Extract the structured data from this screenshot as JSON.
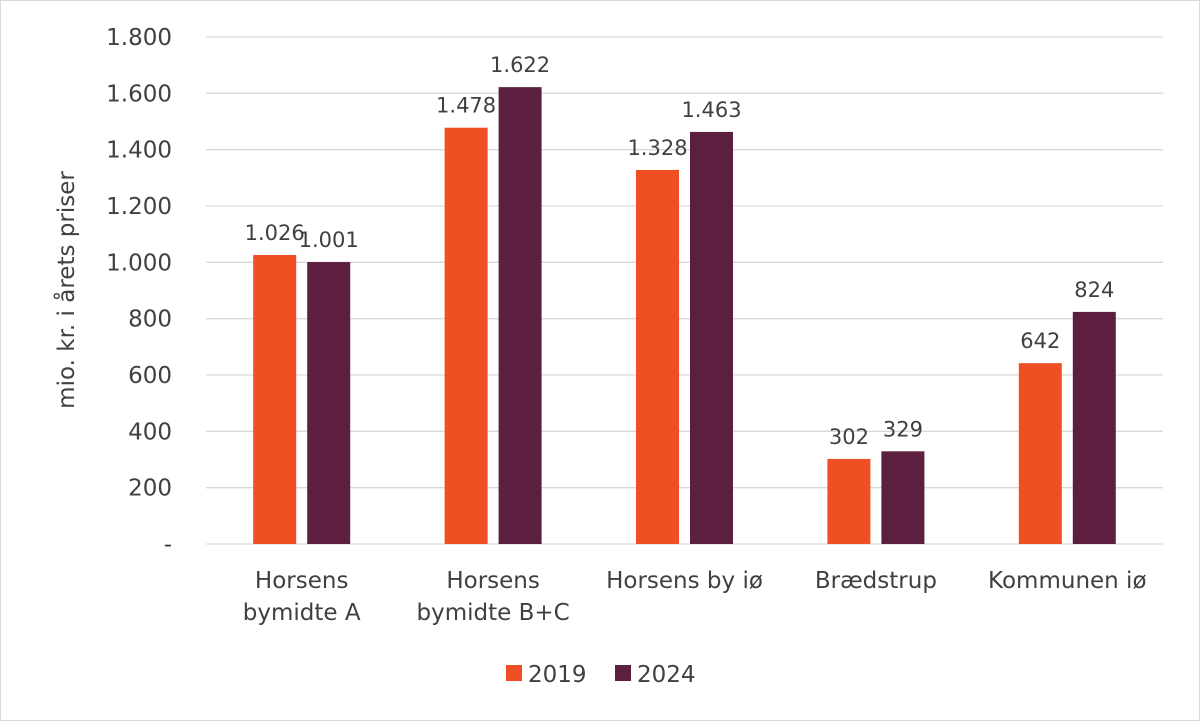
{
  "chart_data": {
    "type": "bar",
    "title": "",
    "xlabel": "",
    "ylabel": "mio. kr. i årets priser",
    "ylim": [
      0,
      1800
    ],
    "y_ticks": [
      {
        "value": 0,
        "label": "-"
      },
      {
        "value": 200,
        "label": "200"
      },
      {
        "value": 400,
        "label": "400"
      },
      {
        "value": 600,
        "label": "600"
      },
      {
        "value": 800,
        "label": "800"
      },
      {
        "value": 1000,
        "label": "1.000"
      },
      {
        "value": 1200,
        "label": "1.200"
      },
      {
        "value": 1400,
        "label": "1.400"
      },
      {
        "value": 1600,
        "label": "1.600"
      },
      {
        "value": 1800,
        "label": "1.800"
      }
    ],
    "grid": true,
    "legend_position": "bottom",
    "categories": [
      [
        "Horsens",
        "bymidte A"
      ],
      [
        "Horsens",
        "bymidte B+C"
      ],
      [
        "Horsens by iø"
      ],
      [
        "Brædstrup"
      ],
      [
        "Kommunen iø"
      ]
    ],
    "series": [
      {
        "name": "2019",
        "color": "#f04e23",
        "values": [
          1026,
          1478,
          1328,
          302,
          642
        ],
        "labels": [
          "1.026",
          "1.478",
          "1.328",
          "302",
          "642"
        ]
      },
      {
        "name": "2024",
        "color": "#5c1f3f",
        "values": [
          1001,
          1622,
          1463,
          329,
          824
        ],
        "labels": [
          "1.001",
          "1.622",
          "1.463",
          "329",
          "824"
        ]
      }
    ]
  }
}
